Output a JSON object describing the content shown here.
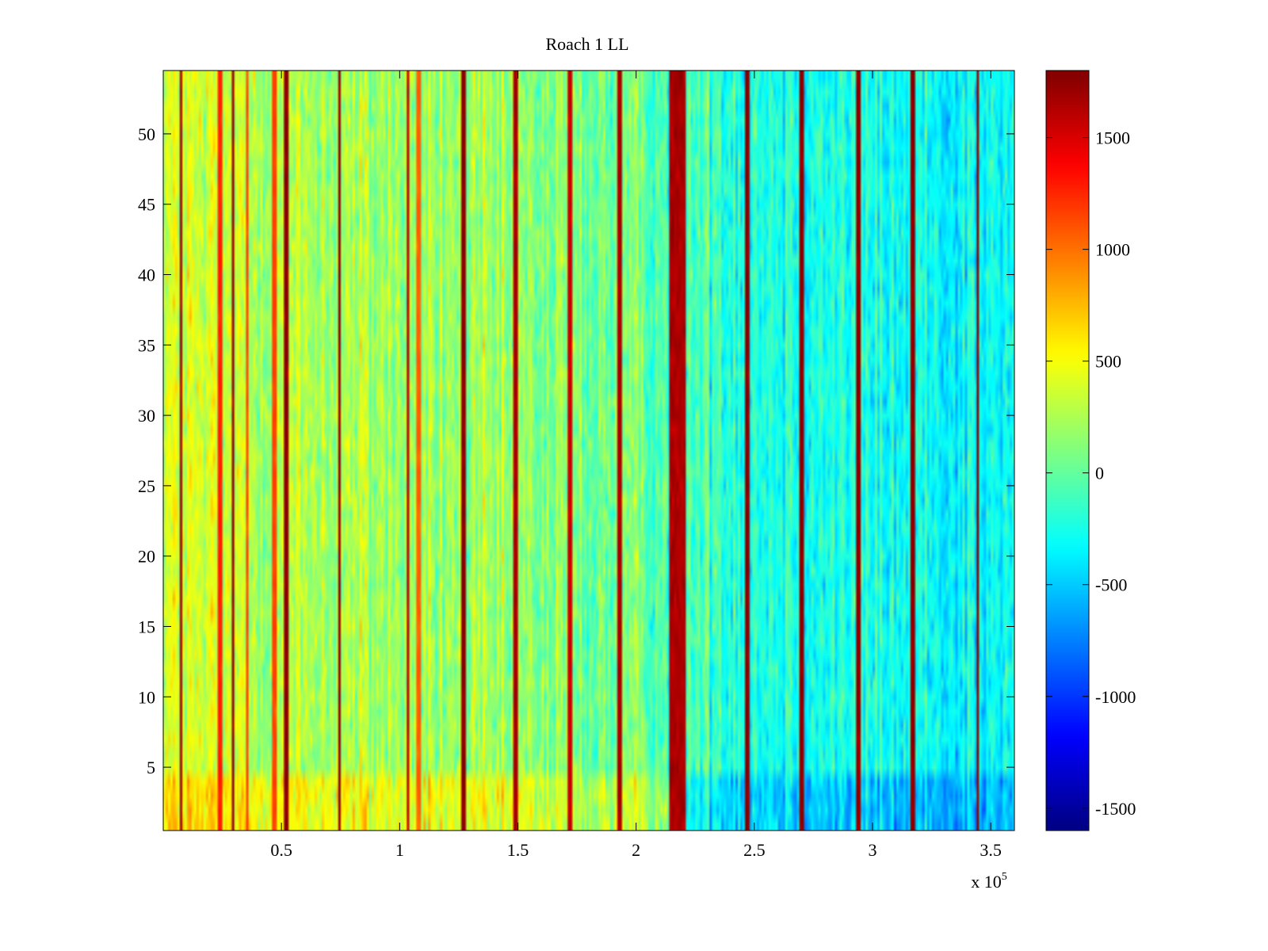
{
  "chart_data": {
    "type": "heatmap",
    "title": "Roach 1 LL",
    "xlabel": "",
    "ylabel": "",
    "x_exponent_label": "x 10",
    "x_exponent_power": "5",
    "xlim": [
      0,
      3.6
    ],
    "ylim": [
      0.5,
      54.5
    ],
    "x_ticks": [
      0.5,
      1,
      1.5,
      2,
      2.5,
      3,
      3.5
    ],
    "x_tick_labels": [
      "0.5",
      "1",
      "1.5",
      "2",
      "2.5",
      "3",
      "3.5"
    ],
    "y_ticks": [
      5,
      10,
      15,
      20,
      25,
      30,
      35,
      40,
      45,
      50
    ],
    "y_tick_labels": [
      "5",
      "10",
      "15",
      "20",
      "25",
      "30",
      "35",
      "40",
      "45",
      "50"
    ],
    "colorbar": {
      "clim": [
        -1600,
        1800
      ],
      "colormap": "jet",
      "ticks": [
        -1500,
        -1000,
        -500,
        0,
        500,
        1000,
        1500
      ],
      "tick_labels": [
        "-1500",
        "-1000",
        "-500",
        "0",
        "500",
        "1000",
        "1500"
      ]
    },
    "rows": 54,
    "columns": 360,
    "baseline_profile": {
      "x": [
        0.0,
        0.3,
        0.8,
        1.2,
        1.6,
        2.0,
        2.2,
        2.5,
        3.0,
        3.3,
        3.6
      ],
      "value": [
        380,
        300,
        230,
        170,
        100,
        20,
        -60,
        -180,
        -260,
        -300,
        -330
      ],
      "note": "approximate background level along x (units of 10^5)"
    },
    "low_row_boost": {
      "rows_below": 4.5,
      "left_of_x": 2.2,
      "value_delta": 250,
      "right_value_delta": -250
    },
    "noise_amplitude": 420,
    "hot_band": {
      "x_start": 2.14,
      "x_end": 2.21,
      "value": 1650
    },
    "narrow_lines": [
      {
        "x": 0.075,
        "value": 1800
      },
      {
        "x": 0.24,
        "value": 1300
      },
      {
        "x": 0.295,
        "value": 1800
      },
      {
        "x": 0.355,
        "value": 1200
      },
      {
        "x": 0.47,
        "value": 1200
      },
      {
        "x": 0.52,
        "value": 1800
      },
      {
        "x": 0.745,
        "value": 1800
      },
      {
        "x": 1.035,
        "value": 1700
      },
      {
        "x": 1.08,
        "value": 1100
      },
      {
        "x": 1.27,
        "value": 1800
      },
      {
        "x": 1.49,
        "value": 1700
      },
      {
        "x": 1.72,
        "value": 1600
      },
      {
        "x": 1.93,
        "value": 1700
      },
      {
        "x": 2.47,
        "value": 1800
      },
      {
        "x": 2.7,
        "value": 1800
      },
      {
        "x": 2.94,
        "value": 1800
      },
      {
        "x": 3.17,
        "value": 1800
      },
      {
        "x": 3.445,
        "value": 1800
      }
    ]
  }
}
